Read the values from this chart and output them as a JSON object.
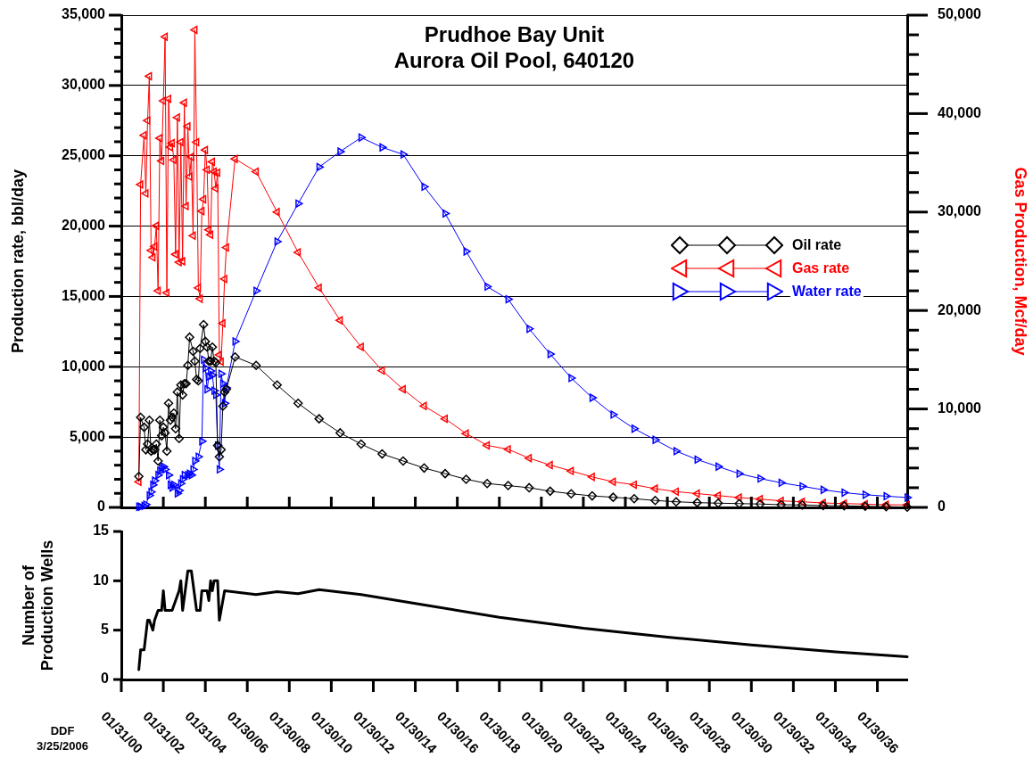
{
  "chart_data": [
    {
      "type": "line",
      "title": "Prudhoe Bay Unit",
      "subtitle": "Aurora Oil Pool, 640120",
      "ylabel": "Production rate, bbl/day",
      "y2label": "Gas Production, Mcf/day",
      "xlim": [
        "2000-01-31",
        "2037-07"
      ],
      "xticks": [
        {
          "value": "2000-01-31",
          "label": null
        },
        {
          "value": "2002-01-31",
          "label": null
        },
        {
          "value": "2004-01-31",
          "label": null
        },
        {
          "value": "2006-01-30",
          "label": null
        },
        {
          "value": "2008-01-30",
          "label": null
        },
        {
          "value": "2010-01-30",
          "label": null
        },
        {
          "value": "2012-01-30",
          "label": null
        },
        {
          "value": "2014-01-30",
          "label": null
        },
        {
          "value": "2016-01-30",
          "label": null
        },
        {
          "value": "2018-01-30",
          "label": null
        },
        {
          "value": "2020-01-30",
          "label": null
        },
        {
          "value": "2022-01-30",
          "label": null
        },
        {
          "value": "2024-01-30",
          "label": null
        },
        {
          "value": "2026-01-30",
          "label": null
        },
        {
          "value": "2028-01-30",
          "label": null
        },
        {
          "value": "2030-01-30",
          "label": null
        },
        {
          "value": "2032-01-30",
          "label": null
        },
        {
          "value": "2034-01-30",
          "label": null
        },
        {
          "value": "2036-01-30",
          "label": null
        }
      ],
      "ylim": [
        0,
        35000
      ],
      "yticks": [
        0,
        {
          "value": 1000,
          "label": null
        },
        {
          "value": 2000,
          "label": null
        },
        {
          "value": 3000,
          "label": null
        },
        {
          "value": 4000,
          "label": null
        },
        {
          "value": 5000,
          "label": "5,000"
        },
        {
          "value": 6000,
          "label": null
        },
        {
          "value": 7000,
          "label": null
        },
        {
          "value": 8000,
          "label": null
        },
        {
          "value": 9000,
          "label": null
        },
        {
          "value": 10000,
          "label": "10,000"
        },
        {
          "value": 11000,
          "label": null
        },
        {
          "value": 12000,
          "label": null
        },
        {
          "value": 13000,
          "label": null
        },
        {
          "value": 14000,
          "label": null
        },
        {
          "value": 15000,
          "label": "15,000"
        },
        {
          "value": 16000,
          "label": null
        },
        {
          "value": 17000,
          "label": null
        },
        {
          "value": 18000,
          "label": null
        },
        {
          "value": 19000,
          "label": null
        },
        {
          "value": 20000,
          "label": "20,000"
        },
        {
          "value": 21000,
          "label": null
        },
        {
          "value": 22000,
          "label": null
        },
        {
          "value": 23000,
          "label": null
        },
        {
          "value": 24000,
          "label": null
        },
        {
          "value": 25000,
          "label": "25,000"
        },
        {
          "value": 26000,
          "label": null
        },
        {
          "value": 27000,
          "label": null
        },
        {
          "value": 28000,
          "label": null
        },
        {
          "value": 29000,
          "label": null
        },
        {
          "value": 30000,
          "label": "30,000"
        },
        {
          "value": 31000,
          "label": null
        },
        {
          "value": 32000,
          "label": null
        },
        {
          "value": 33000,
          "label": null
        },
        {
          "value": 34000,
          "label": null
        },
        {
          "value": 35000,
          "label": "35,000"
        }
      ],
      "y2lim": [
        0,
        50000
      ],
      "y2ticks": [
        0,
        {
          "value": 2000,
          "label": null
        },
        {
          "value": 4000,
          "label": null
        },
        {
          "value": 6000,
          "label": null
        },
        {
          "value": 8000,
          "label": null
        },
        {
          "value": 10000,
          "label": "10,000"
        },
        {
          "value": 12000,
          "label": null
        },
        {
          "value": 14000,
          "label": null
        },
        {
          "value": 16000,
          "label": null
        },
        {
          "value": 18000,
          "label": null
        },
        {
          "value": 20000,
          "label": "20,000"
        },
        {
          "value": 22000,
          "label": null
        },
        {
          "value": 24000,
          "label": null
        },
        {
          "value": 26000,
          "label": null
        },
        {
          "value": 28000,
          "label": null
        },
        {
          "value": 30000,
          "label": "30,000"
        },
        {
          "value": 32000,
          "label": null
        },
        {
          "value": 34000,
          "label": null
        },
        {
          "value": 36000,
          "label": null
        },
        {
          "value": 38000,
          "label": null
        },
        {
          "value": 40000,
          "label": "40,000"
        },
        {
          "value": 42000,
          "label": null
        },
        {
          "value": 44000,
          "label": null
        },
        {
          "value": 46000,
          "label": null
        },
        {
          "value": 48000,
          "label": null
        },
        {
          "value": 50000,
          "label": "50,000"
        }
      ],
      "grid": "y",
      "legend": "right",
      "tick_labels": "y",
      "line_style": "solid",
      "series": [
        {
          "name": "Oil rate",
          "color": "#000000",
          "marker": "diamond",
          "x": [
            "2000-12",
            "2001-01",
            "2001-03",
            "2001-04",
            "2001-05",
            "2001-06",
            "2001-07",
            "2001-08",
            "2001-09",
            "2001-10",
            "2001-11",
            "2001-12",
            "2002-01",
            "2002-02",
            "2002-03",
            "2002-04",
            "2002-05",
            "2002-06",
            "2002-07",
            "2002-08",
            "2002-09",
            "2002-10",
            "2002-11",
            "2002-12",
            "2003-01",
            "2003-02",
            "2003-03",
            "2003-04",
            "2003-05",
            "2003-07",
            "2003-08",
            "2003-09",
            "2003-10",
            "2003-11",
            "2004-01",
            "2004-02",
            "2004-03",
            "2004-04",
            "2004-05",
            "2004-06",
            "2004-07",
            "2004-08",
            "2004-09",
            "2004-10",
            "2004-11",
            "2004-12",
            "2005-01",
            "2005-02",
            "2005-07",
            "2006-07",
            "2007-07",
            "2008-07",
            "2009-07",
            "2010-07",
            "2011-07",
            "2012-07",
            "2013-07",
            "2014-07",
            "2015-07",
            "2016-07",
            "2017-07",
            "2018-07",
            "2019-07",
            "2020-07",
            "2021-07",
            "2022-07",
            "2023-07",
            "2024-07",
            "2025-07",
            "2026-07",
            "2027-07",
            "2028-07",
            "2029-07",
            "2030-07",
            "2031-07",
            "2032-07",
            "2033-07",
            "2034-07",
            "2035-07",
            "2036-07",
            "2037-07"
          ],
          "values": [
            2200,
            6400,
            5700,
            4100,
            4500,
            6200,
            4000,
            4100,
            4100,
            4500,
            3300,
            6200,
            5100,
            5700,
            5300,
            4000,
            7400,
            6200,
            6400,
            6700,
            5600,
            8200,
            4900,
            8700,
            8000,
            8800,
            8800,
            10100,
            12100,
            11100,
            10400,
            9100,
            9000,
            11300,
            13000,
            11800,
            11400,
            10400,
            10400,
            11400,
            10400,
            10300,
            4400,
            3600,
            4100,
            7200,
            8200,
            8400,
            10700,
            10100,
            8700,
            7400,
            6300,
            5300,
            4500,
            3800,
            3300,
            2800,
            2400,
            2000,
            1700,
            1550,
            1400,
            1150,
            970,
            820,
            720,
            620,
            490,
            400,
            340,
            300,
            270,
            240,
            190,
            170,
            130,
            110,
            80,
            50,
            20
          ]
        },
        {
          "name": "Gas rate",
          "color": "#ff0000",
          "marker": "triangle",
          "axis": "y2",
          "x": [
            "2000-12",
            "2001-01",
            "2001-03",
            "2001-04",
            "2001-05",
            "2001-06",
            "2001-07",
            "2001-08",
            "2001-09",
            "2001-10",
            "2001-11",
            "2001-12",
            "2002-01",
            "2002-02",
            "2002-03",
            "2002-04",
            "2002-05",
            "2002-06",
            "2002-07",
            "2002-08",
            "2002-09",
            "2002-10",
            "2002-11",
            "2002-12",
            "2003-01",
            "2003-02",
            "2003-03",
            "2003-04",
            "2003-05",
            "2003-06",
            "2003-07",
            "2003-08",
            "2003-09",
            "2003-10",
            "2003-11",
            "2003-12",
            "2004-01",
            "2004-02",
            "2004-03",
            "2004-04",
            "2004-05",
            "2004-06",
            "2004-07",
            "2004-08",
            "2004-09",
            "2004-10",
            "2004-11",
            "2004-12",
            "2005-01",
            "2005-02",
            "2005-07",
            "2006-07",
            "2007-07",
            "2008-07",
            "2009-07",
            "2010-07",
            "2011-07",
            "2012-07",
            "2013-07",
            "2014-07",
            "2015-07",
            "2016-07",
            "2017-07",
            "2018-07",
            "2019-07",
            "2020-07",
            "2021-07",
            "2022-07",
            "2023-07",
            "2024-07",
            "2025-07",
            "2026-07",
            "2027-07",
            "2028-07",
            "2029-07",
            "2030-07",
            "2031-07",
            "2032-07",
            "2033-07",
            "2034-07",
            "2035-07",
            "2036-07",
            "2037-07"
          ],
          "values": [
            2600,
            32800,
            37800,
            31900,
            39300,
            43800,
            26100,
            25400,
            26500,
            28600,
            22000,
            37500,
            35200,
            41300,
            47800,
            21800,
            41500,
            36600,
            37000,
            35300,
            25700,
            39600,
            24900,
            37100,
            25000,
            41100,
            30600,
            38700,
            33600,
            35600,
            27600,
            48500,
            37100,
            22300,
            21200,
            30100,
            31300,
            36300,
            34300,
            28200,
            27700,
            35100,
            34100,
            32400,
            34000,
            15500,
            14800,
            18700,
            23200,
            26400,
            35400,
            34100,
            30000,
            25900,
            22300,
            19000,
            16300,
            13900,
            12000,
            10300,
            9000,
            7500,
            6300,
            5900,
            5000,
            4300,
            3700,
            3100,
            2600,
            2300,
            1900,
            1600,
            1400,
            1200,
            1000,
            840,
            660,
            570,
            450,
            390,
            330,
            270,
            250
          ]
        },
        {
          "name": "Water rate",
          "color": "#0000ff",
          "marker": "triangle",
          "x": [
            "2000-12",
            "2001-01",
            "2001-03",
            "2001-04",
            "2001-06",
            "2001-07",
            "2001-08",
            "2001-09",
            "2001-11",
            "2001-12",
            "2002-01",
            "2002-02",
            "2002-03",
            "2002-05",
            "2002-06",
            "2002-07",
            "2002-08",
            "2002-10",
            "2002-11",
            "2002-12",
            "2003-01",
            "2003-02",
            "2003-04",
            "2003-05",
            "2003-06",
            "2003-07",
            "2003-08",
            "2003-10",
            "2003-12",
            "2004-01",
            "2004-02",
            "2004-03",
            "2004-04",
            "2004-05",
            "2004-06",
            "2004-07",
            "2004-08",
            "2004-09",
            "2004-10",
            "2004-11",
            "2004-12",
            "2005-01",
            "2005-02",
            "2005-07",
            "2006-07",
            "2007-07",
            "2008-07",
            "2009-07",
            "2010-07",
            "2011-07",
            "2012-07",
            "2013-07",
            "2014-07",
            "2015-07",
            "2016-07",
            "2017-07",
            "2018-07",
            "2019-07",
            "2020-07",
            "2021-07",
            "2022-07",
            "2023-07",
            "2024-07",
            "2025-07",
            "2026-07",
            "2027-07",
            "2028-07",
            "2029-07",
            "2030-07",
            "2031-07",
            "2032-07",
            "2033-07",
            "2034-07",
            "2035-07",
            "2036-07",
            "2037-07"
          ],
          "values": [
            50,
            50,
            100,
            200,
            850,
            1100,
            1600,
            1900,
            2300,
            2600,
            2800,
            2900,
            2700,
            2300,
            1600,
            1400,
            1600,
            1000,
            1200,
            1700,
            2000,
            2300,
            2300,
            2400,
            2300,
            2700,
            3300,
            3600,
            4700,
            10500,
            9900,
            8400,
            9300,
            9700,
            9400,
            8300,
            8000,
            4400,
            2700,
            9500,
            8800,
            7400,
            8500,
            11800,
            15400,
            18900,
            21600,
            24200,
            25300,
            26300,
            25600,
            25100,
            22800,
            20900,
            18200,
            15700,
            14800,
            12700,
            10900,
            9200,
            7800,
            6600,
            5600,
            4800,
            4000,
            3400,
            2900,
            2400,
            2050,
            1750,
            1500,
            1250,
            1050,
            900,
            800,
            700
          ]
        }
      ]
    },
    {
      "type": "line",
      "ylabel": "Number of Production Wells",
      "annotations": [
        "DDF",
        "3/25/2006"
      ],
      "xlim": [
        "2000-01-31",
        "2037-07"
      ],
      "xticks": [
        {
          "value": "2000-01-31",
          "label": "01/31/00"
        },
        {
          "value": "2002-01-31",
          "label": "01/31/02"
        },
        {
          "value": "2004-01-31",
          "label": "01/31/04"
        },
        {
          "value": "2006-01-30",
          "label": "01/30/06"
        },
        {
          "value": "2008-01-30",
          "label": "01/30/08"
        },
        {
          "value": "2010-01-30",
          "label": "01/30/10"
        },
        {
          "value": "2012-01-30",
          "label": "01/30/12"
        },
        {
          "value": "2014-01-30",
          "label": "01/30/14"
        },
        {
          "value": "2016-01-30",
          "label": "01/30/16"
        },
        {
          "value": "2018-01-30",
          "label": "01/30/18"
        },
        {
          "value": "2020-01-30",
          "label": "01/30/20"
        },
        {
          "value": "2022-01-30",
          "label": "01/30/22"
        },
        {
          "value": "2024-01-30",
          "label": "01/30/24"
        },
        {
          "value": "2026-01-30",
          "label": "01/30/26"
        },
        {
          "value": "2028-01-30",
          "label": "01/30/28"
        },
        {
          "value": "2030-01-30",
          "label": "01/30/30"
        },
        {
          "value": "2032-01-30",
          "label": "01/30/32"
        },
        {
          "value": "2034-01-30",
          "label": "01/30/34"
        },
        {
          "value": "2036-01-30",
          "label": "01/30/36"
        }
      ],
      "ylim": [
        0,
        15
      ],
      "yticks": [
        0,
        5,
        10,
        15
      ],
      "grid": false,
      "legend": false,
      "marker": "none",
      "line_style": "solid",
      "series": [
        {
          "color": "#000000",
          "x": [
            "2000-12",
            "2001-01",
            "2001-03",
            "2001-05",
            "2001-06",
            "2001-08",
            "2001-09",
            "2001-11",
            "2002-01",
            "2002-02",
            "2002-03",
            "2002-07",
            "2002-09",
            "2002-11",
            "2002-12",
            "2003-01",
            "2003-04",
            "2003-06",
            "2003-09",
            "2003-11",
            "2003-12",
            "2004-03",
            "2004-04",
            "2004-05",
            "2004-06",
            "2004-07",
            "2004-09",
            "2004-10",
            "2004-11",
            "2005-01",
            "2006-07",
            "2007-07",
            "2008-07",
            "2009-07",
            "2011-07",
            "2014-02",
            "2018-02",
            "2022-02",
            "2026-02",
            "2030-02",
            "2034-02",
            "2037-07"
          ],
          "values": [
            1,
            3,
            3,
            6,
            6,
            5,
            6,
            7,
            7,
            9,
            7,
            7,
            8,
            9,
            10,
            7,
            11,
            11,
            7,
            7,
            9,
            9,
            8,
            10,
            9,
            10,
            10,
            6,
            7,
            9,
            8.6,
            8.9,
            8.7,
            9.1,
            8.6,
            7.7,
            6.3,
            5.2,
            4.3,
            3.5,
            2.8,
            2.3
          ]
        }
      ]
    }
  ]
}
